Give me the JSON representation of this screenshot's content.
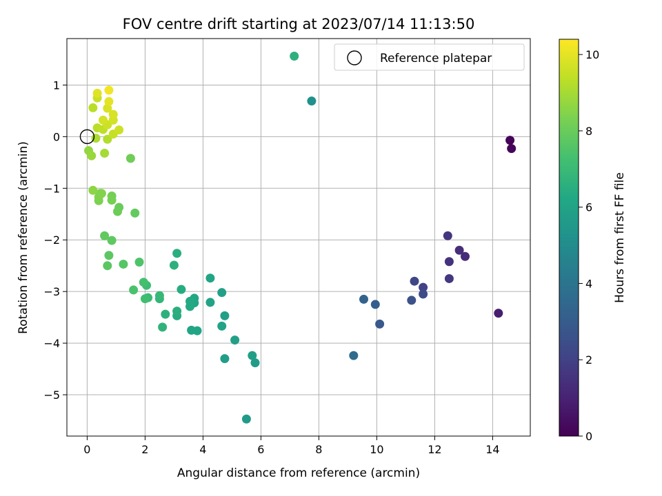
{
  "chart_data": {
    "type": "scatter",
    "title": "FOV centre drift starting at 2023/07/14 11:13:50",
    "xlabel": "Angular distance from reference (arcmin)",
    "ylabel": "Rotation from reference (arcmin)",
    "xlim": [
      -0.7,
      15.3
    ],
    "ylim": [
      -5.8,
      1.9
    ],
    "x_ticks": [
      0,
      2,
      4,
      6,
      8,
      10,
      12,
      14
    ],
    "y_ticks": [
      -5,
      -4,
      -3,
      -2,
      -1,
      0,
      1
    ],
    "grid": true,
    "legend": {
      "position": "top-right",
      "entries": [
        "Reference platepar"
      ]
    },
    "reference_point": {
      "x": 0,
      "y": 0
    },
    "colorbar": {
      "label": "Hours from first FF file",
      "range": [
        0,
        10.4
      ],
      "ticks": [
        0,
        2,
        4,
        6,
        8,
        10
      ],
      "colormap": "viridis"
    },
    "points": [
      {
        "x": 14.6,
        "y": -0.07,
        "h": 0.1
      },
      {
        "x": 14.65,
        "y": -0.23,
        "h": 0.15
      },
      {
        "x": 14.2,
        "y": -3.42,
        "h": 0.9
      },
      {
        "x": 13.05,
        "y": -2.32,
        "h": 1.25
      },
      {
        "x": 12.85,
        "y": -2.2,
        "h": 1.35
      },
      {
        "x": 12.5,
        "y": -2.42,
        "h": 1.5
      },
      {
        "x": 12.45,
        "y": -1.92,
        "h": 1.6
      },
      {
        "x": 12.5,
        "y": -2.75,
        "h": 1.7
      },
      {
        "x": 11.6,
        "y": -2.92,
        "h": 2.0
      },
      {
        "x": 11.3,
        "y": -2.8,
        "h": 2.2
      },
      {
        "x": 11.6,
        "y": -3.05,
        "h": 2.4
      },
      {
        "x": 11.2,
        "y": -3.17,
        "h": 2.6
      },
      {
        "x": 10.1,
        "y": -3.63,
        "h": 2.9
      },
      {
        "x": 9.95,
        "y": -3.25,
        "h": 3.1
      },
      {
        "x": 9.55,
        "y": -3.15,
        "h": 3.3
      },
      {
        "x": 9.2,
        "y": -4.24,
        "h": 3.6
      },
      {
        "x": 7.75,
        "y": 0.69,
        "h": 5.2
      },
      {
        "x": 7.15,
        "y": 1.56,
        "h": 6.6
      },
      {
        "x": 5.5,
        "y": -5.47,
        "h": 5.6
      },
      {
        "x": 5.8,
        "y": -4.38,
        "h": 5.7
      },
      {
        "x": 5.7,
        "y": -4.24,
        "h": 5.8
      },
      {
        "x": 5.1,
        "y": -3.94,
        "h": 5.9
      },
      {
        "x": 4.75,
        "y": -4.3,
        "h": 5.8
      },
      {
        "x": 4.75,
        "y": -3.47,
        "h": 5.9
      },
      {
        "x": 4.65,
        "y": -3.02,
        "h": 5.9
      },
      {
        "x": 4.65,
        "y": -3.67,
        "h": 6.0
      },
      {
        "x": 4.25,
        "y": -3.21,
        "h": 6.0
      },
      {
        "x": 4.25,
        "y": -2.74,
        "h": 6.1
      },
      {
        "x": 3.8,
        "y": -3.76,
        "h": 6.1
      },
      {
        "x": 3.6,
        "y": -3.75,
        "h": 6.1
      },
      {
        "x": 3.7,
        "y": -3.22,
        "h": 6.2
      },
      {
        "x": 3.7,
        "y": -3.13,
        "h": 6.2
      },
      {
        "x": 3.55,
        "y": -3.29,
        "h": 6.3
      },
      {
        "x": 3.55,
        "y": -3.19,
        "h": 6.3
      },
      {
        "x": 3.25,
        "y": -2.96,
        "h": 6.4
      },
      {
        "x": 3.1,
        "y": -3.47,
        "h": 6.4
      },
      {
        "x": 3.1,
        "y": -3.38,
        "h": 6.5
      },
      {
        "x": 3.1,
        "y": -2.26,
        "h": 6.5
      },
      {
        "x": 3.0,
        "y": -2.49,
        "h": 6.6
      },
      {
        "x": 2.7,
        "y": -3.44,
        "h": 6.6
      },
      {
        "x": 2.6,
        "y": -3.69,
        "h": 6.7
      },
      {
        "x": 2.5,
        "y": -3.14,
        "h": 6.8
      },
      {
        "x": 2.5,
        "y": -3.08,
        "h": 6.9
      },
      {
        "x": 2.1,
        "y": -3.12,
        "h": 7.0
      },
      {
        "x": 2.05,
        "y": -2.88,
        "h": 7.1
      },
      {
        "x": 2.0,
        "y": -3.14,
        "h": 7.2
      },
      {
        "x": 1.95,
        "y": -2.82,
        "h": 7.3
      },
      {
        "x": 1.6,
        "y": -2.97,
        "h": 7.4
      },
      {
        "x": 1.8,
        "y": -2.43,
        "h": 7.5
      },
      {
        "x": 1.25,
        "y": -2.47,
        "h": 7.6
      },
      {
        "x": 0.7,
        "y": -2.5,
        "h": 7.7
      },
      {
        "x": 0.75,
        "y": -2.3,
        "h": 7.75
      },
      {
        "x": 0.85,
        "y": -2.01,
        "h": 7.8
      },
      {
        "x": 0.6,
        "y": -1.92,
        "h": 7.85
      },
      {
        "x": 1.65,
        "y": -1.48,
        "h": 7.9
      },
      {
        "x": 1.1,
        "y": -1.37,
        "h": 8.0
      },
      {
        "x": 1.05,
        "y": -1.45,
        "h": 8.05
      },
      {
        "x": 1.5,
        "y": -0.42,
        "h": 8.1
      },
      {
        "x": 0.85,
        "y": -1.15,
        "h": 8.2
      },
      {
        "x": 0.85,
        "y": -1.23,
        "h": 8.25
      },
      {
        "x": 0.45,
        "y": -1.1,
        "h": 8.3
      },
      {
        "x": 0.4,
        "y": -1.24,
        "h": 8.35
      },
      {
        "x": 0.4,
        "y": -1.17,
        "h": 8.4
      },
      {
        "x": 0.5,
        "y": -1.1,
        "h": 8.45
      },
      {
        "x": 0.2,
        "y": -1.04,
        "h": 8.6
      },
      {
        "x": 0.05,
        "y": -0.27,
        "h": 8.7
      },
      {
        "x": 0.15,
        "y": -0.37,
        "h": 8.8
      },
      {
        "x": 0.6,
        "y": -0.32,
        "h": 9.0
      },
      {
        "x": 0.3,
        "y": -0.03,
        "h": 9.1
      },
      {
        "x": 0.7,
        "y": -0.05,
        "h": 9.2
      },
      {
        "x": 0.35,
        "y": 0.17,
        "h": 9.3
      },
      {
        "x": 0.55,
        "y": 0.14,
        "h": 9.4
      },
      {
        "x": 0.9,
        "y": 0.05,
        "h": 9.5
      },
      {
        "x": 1.1,
        "y": 0.13,
        "h": 9.6
      },
      {
        "x": 0.7,
        "y": 0.23,
        "h": 9.6
      },
      {
        "x": 0.55,
        "y": 0.32,
        "h": 9.7
      },
      {
        "x": 0.9,
        "y": 0.32,
        "h": 9.7
      },
      {
        "x": 0.9,
        "y": 0.43,
        "h": 9.8
      },
      {
        "x": 0.7,
        "y": 0.55,
        "h": 9.8
      },
      {
        "x": 0.2,
        "y": 0.56,
        "h": 9.3
      },
      {
        "x": 0.35,
        "y": 0.75,
        "h": 9.5
      },
      {
        "x": 0.35,
        "y": 0.84,
        "h": 9.9
      },
      {
        "x": 0.75,
        "y": 0.68,
        "h": 10.0
      },
      {
        "x": 0.75,
        "y": 0.9,
        "h": 10.2
      }
    ]
  }
}
